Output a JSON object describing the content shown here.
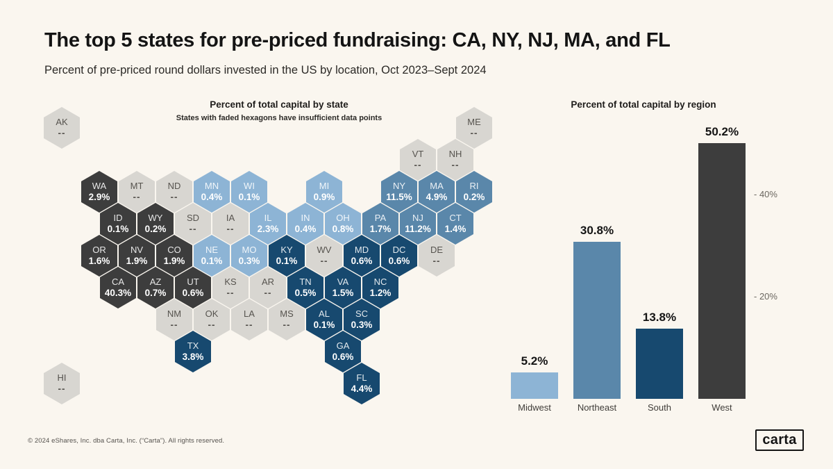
{
  "header": {
    "title": "The top 5 states for pre-priced fundraising: CA, NY, NJ, MA, and FL",
    "subtitle": "Percent of pre-priced round dollars invested in the US by location, Oct 2023–Sept 2024"
  },
  "colors": {
    "background": "#faf6ef",
    "region_colors": {
      "West": "#3d3d3d",
      "Midwest": "#8db4d5",
      "Northeast": "#5a87aa",
      "South": "#17496f"
    },
    "insufficient_data": "#d8d6d1",
    "no_data_label": "--"
  },
  "chart_data": [
    {
      "type": "heatmap",
      "subtype": "hex-cartogram",
      "title": "Percent of total capital by state",
      "note": "States with faded hexagons have insufficient data points",
      "unit": "%",
      "points": [
        {
          "state": "AK",
          "value": null,
          "region": "West",
          "col": -2,
          "row": -2
        },
        {
          "state": "ME",
          "value": null,
          "region": "Northeast",
          "col": 20,
          "row": -2
        },
        {
          "state": "VT",
          "value": null,
          "region": "Northeast",
          "col": 17,
          "row": -1
        },
        {
          "state": "NH",
          "value": null,
          "region": "Northeast",
          "col": 19,
          "row": -1
        },
        {
          "state": "WA",
          "value": 2.9,
          "region": "West",
          "col": 0,
          "row": 0
        },
        {
          "state": "MT",
          "value": null,
          "region": "West",
          "col": 2,
          "row": 0
        },
        {
          "state": "ND",
          "value": null,
          "region": "Midwest",
          "col": 4,
          "row": 0
        },
        {
          "state": "MN",
          "value": 0.4,
          "region": "Midwest",
          "col": 6,
          "row": 0
        },
        {
          "state": "WI",
          "value": 0.1,
          "region": "Midwest",
          "col": 8,
          "row": 0
        },
        {
          "state": "MI",
          "value": 0.9,
          "region": "Midwest",
          "col": 12,
          "row": 0
        },
        {
          "state": "NY",
          "value": 11.5,
          "region": "Northeast",
          "col": 16,
          "row": 0
        },
        {
          "state": "MA",
          "value": 4.9,
          "region": "Northeast",
          "col": 18,
          "row": 0
        },
        {
          "state": "RI",
          "value": 0.2,
          "region": "Northeast",
          "col": 20,
          "row": 0
        },
        {
          "state": "ID",
          "value": 0.1,
          "region": "West",
          "col": 1,
          "row": 1
        },
        {
          "state": "WY",
          "value": 0.2,
          "region": "West",
          "col": 3,
          "row": 1
        },
        {
          "state": "SD",
          "value": null,
          "region": "Midwest",
          "col": 5,
          "row": 1
        },
        {
          "state": "IA",
          "value": null,
          "region": "Midwest",
          "col": 7,
          "row": 1
        },
        {
          "state": "IL",
          "value": 2.3,
          "region": "Midwest",
          "col": 9,
          "row": 1
        },
        {
          "state": "IN",
          "value": 0.4,
          "region": "Midwest",
          "col": 11,
          "row": 1
        },
        {
          "state": "OH",
          "value": 0.8,
          "region": "Midwest",
          "col": 13,
          "row": 1
        },
        {
          "state": "PA",
          "value": 1.7,
          "region": "Northeast",
          "col": 15,
          "row": 1
        },
        {
          "state": "NJ",
          "value": 11.2,
          "region": "Northeast",
          "col": 17,
          "row": 1
        },
        {
          "state": "CT",
          "value": 1.4,
          "region": "Northeast",
          "col": 19,
          "row": 1
        },
        {
          "state": "OR",
          "value": 1.6,
          "region": "West",
          "col": 0,
          "row": 2
        },
        {
          "state": "NV",
          "value": 1.9,
          "region": "West",
          "col": 2,
          "row": 2
        },
        {
          "state": "CO",
          "value": 1.9,
          "region": "West",
          "col": 4,
          "row": 2
        },
        {
          "state": "NE",
          "value": 0.1,
          "region": "Midwest",
          "col": 6,
          "row": 2
        },
        {
          "state": "MO",
          "value": 0.3,
          "region": "Midwest",
          "col": 8,
          "row": 2
        },
        {
          "state": "KY",
          "value": 0.1,
          "region": "South",
          "col": 10,
          "row": 2
        },
        {
          "state": "WV",
          "value": null,
          "region": "South",
          "col": 12,
          "row": 2
        },
        {
          "state": "MD",
          "value": 0.6,
          "region": "South",
          "col": 14,
          "row": 2
        },
        {
          "state": "DC",
          "value": 0.6,
          "region": "South",
          "col": 16,
          "row": 2
        },
        {
          "state": "DE",
          "value": null,
          "region": "South",
          "col": 18,
          "row": 2
        },
        {
          "state": "CA",
          "value": 40.3,
          "region": "West",
          "col": 1,
          "row": 3
        },
        {
          "state": "AZ",
          "value": 0.7,
          "region": "West",
          "col": 3,
          "row": 3
        },
        {
          "state": "UT",
          "value": 0.6,
          "region": "West",
          "col": 5,
          "row": 3
        },
        {
          "state": "KS",
          "value": null,
          "region": "Midwest",
          "col": 7,
          "row": 3
        },
        {
          "state": "AR",
          "value": null,
          "region": "South",
          "col": 9,
          "row": 3
        },
        {
          "state": "TN",
          "value": 0.5,
          "region": "South",
          "col": 11,
          "row": 3
        },
        {
          "state": "VA",
          "value": 1.5,
          "region": "South",
          "col": 13,
          "row": 3
        },
        {
          "state": "NC",
          "value": 1.2,
          "region": "South",
          "col": 15,
          "row": 3
        },
        {
          "state": "NM",
          "value": null,
          "region": "West",
          "col": 4,
          "row": 4
        },
        {
          "state": "OK",
          "value": null,
          "region": "South",
          "col": 6,
          "row": 4
        },
        {
          "state": "LA",
          "value": null,
          "region": "South",
          "col": 8,
          "row": 4
        },
        {
          "state": "MS",
          "value": null,
          "region": "South",
          "col": 10,
          "row": 4
        },
        {
          "state": "AL",
          "value": 0.1,
          "region": "South",
          "col": 12,
          "row": 4
        },
        {
          "state": "SC",
          "value": 0.3,
          "region": "South",
          "col": 14,
          "row": 4
        },
        {
          "state": "TX",
          "value": 3.8,
          "region": "South",
          "col": 5,
          "row": 5
        },
        {
          "state": "GA",
          "value": 0.6,
          "region": "South",
          "col": 13,
          "row": 5
        },
        {
          "state": "FL",
          "value": 4.4,
          "region": "South",
          "col": 14,
          "row": 6
        },
        {
          "state": "HI",
          "value": null,
          "region": "West",
          "col": -2,
          "row": 6
        }
      ]
    },
    {
      "type": "bar",
      "title": "Percent of total capital by region",
      "categories": [
        "Midwest",
        "Northeast",
        "South",
        "West"
      ],
      "values": [
        5.2,
        30.8,
        13.8,
        50.2
      ],
      "value_labels": [
        "5.2%",
        "30.8%",
        "13.8%",
        "50.2%"
      ],
      "unit": "%",
      "ylim": [
        0,
        55
      ],
      "yticks": [
        {
          "value": 40,
          "label": "- 40%"
        },
        {
          "value": 20,
          "label": "- 20%"
        }
      ],
      "grid": false,
      "legend": false
    }
  ],
  "footer": {
    "copyright": "© 2024 eShares, Inc. dba Carta, Inc. (“Carta”). All rights reserved.",
    "logo": "carta"
  }
}
